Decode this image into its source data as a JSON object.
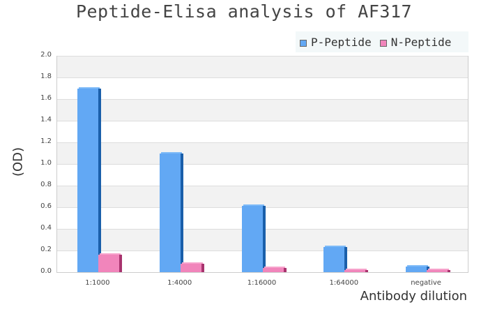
{
  "title": "Peptide-Elisa analysis of AF317",
  "legend": [
    {
      "label": "P-Peptide",
      "color": "#62a8f4"
    },
    {
      "label": "N-Peptide",
      "color": "#f185bb"
    }
  ],
  "axes": {
    "ylabel": "(OD)",
    "xlabel": "Antibody dilution",
    "yticks": [
      "0.0",
      "0.2",
      "0.4",
      "0.6",
      "0.8",
      "1.0",
      "1.2",
      "1.4",
      "1.6",
      "1.8",
      "2.0"
    ]
  },
  "colors": {
    "p_front": "#62a8f4",
    "p_side": "#1a5faa",
    "p_top": "#7dbaf8",
    "n_front": "#f185bb",
    "n_side": "#a8336e",
    "n_top": "#f7a3cc",
    "band": "#f2f2f2",
    "grid": "#dddddd"
  },
  "chart_data": {
    "type": "bar",
    "title": "Peptide-Elisa analysis of AF317",
    "xlabel": "Antibody dilution",
    "ylabel": "(OD)",
    "categories": [
      "1:1000",
      "1:4000",
      "1:16000",
      "1:64000",
      "negative"
    ],
    "series": [
      {
        "name": "P-Peptide",
        "values": [
          1.7,
          1.1,
          0.61,
          0.23,
          0.05
        ]
      },
      {
        "name": "N-Peptide",
        "values": [
          0.16,
          0.08,
          0.04,
          0.02,
          0.02
        ]
      }
    ],
    "ylim": [
      0,
      2.0
    ],
    "yticks": [
      0,
      0.2,
      0.4,
      0.6,
      0.8,
      1.0,
      1.2,
      1.4,
      1.6,
      1.8,
      2.0
    ],
    "grid": true,
    "legend_position": "top-right"
  }
}
